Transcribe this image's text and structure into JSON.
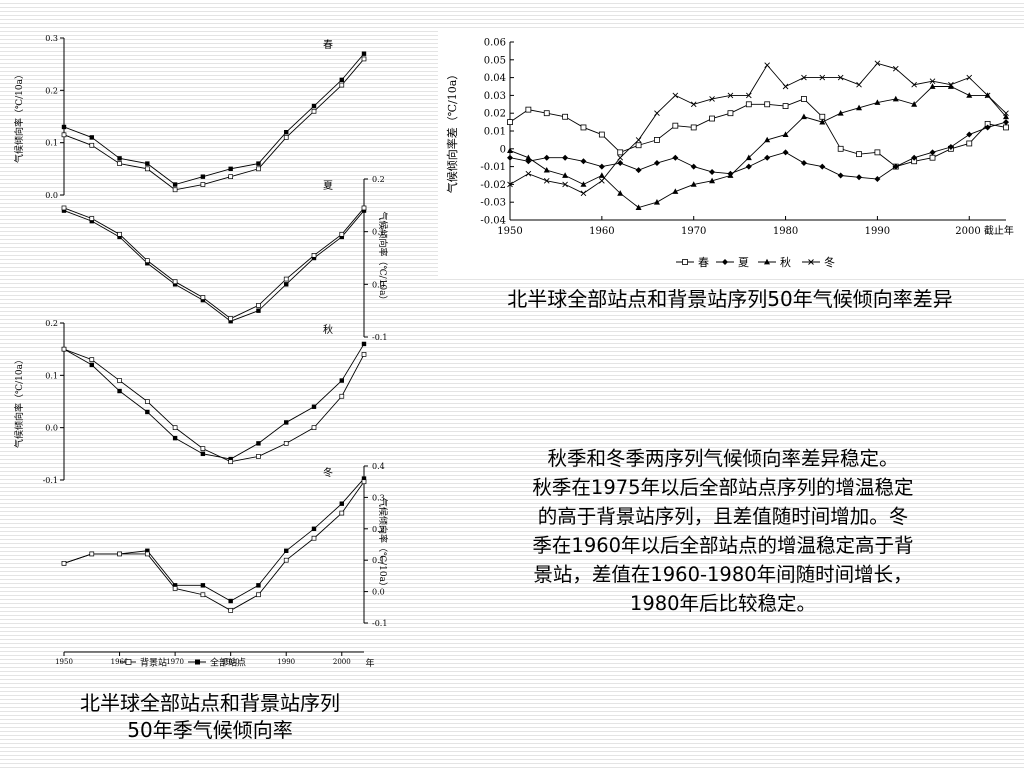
{
  "left_figure": {
    "caption_line1": "北半球全部站点和背景站序列",
    "caption_line2": "50年季气候倾向率",
    "legend": [
      "背景站",
      "全部站点"
    ]
  },
  "right_figure": {
    "caption": "北半球全部站点和背景站序列50年气候倾向率差异",
    "legend": [
      "春",
      "夏",
      "秋",
      "冬"
    ]
  },
  "description": [
    "秋季和冬季两序列气候倾向率差异稳定。",
    "秋季在1975年以后全部站点序列的增温稳定",
    "的高于背景站序列，且差值随时间增加。冬",
    "季在1960年以后全部站点的增温稳定高于背",
    "景站，差值在1960-1980年间随时间增长，",
    "1980年后比较稳定。"
  ],
  "chart_data": [
    {
      "type": "line",
      "name": "seasonal-panels",
      "x": [
        1950,
        1955,
        1960,
        1965,
        1970,
        1975,
        1980,
        1985,
        1990,
        1995,
        2000,
        2004
      ],
      "xticks": [
        "1950",
        "1960",
        "1970",
        "1980",
        "1990",
        "2000"
      ],
      "xunit": "年",
      "ylabel": "气候倾向率（℃/10a）",
      "panels": [
        {
          "season": "春",
          "ylim": [
            0.0,
            0.3
          ],
          "yticks": [
            "0.0",
            "0.1",
            "0.2",
            "0.3"
          ],
          "yaxis": "left",
          "series": [
            {
              "name": "全部站点",
              "values": [
                0.13,
                0.11,
                0.07,
                0.06,
                0.02,
                0.035,
                0.05,
                0.06,
                0.12,
                0.17,
                0.22,
                0.27
              ]
            },
            {
              "name": "背景站",
              "values": [
                0.115,
                0.095,
                0.06,
                0.05,
                0.01,
                0.02,
                0.035,
                0.05,
                0.11,
                0.16,
                0.21,
                0.26
              ]
            }
          ]
        },
        {
          "season": "夏",
          "ylim": [
            -0.1,
            0.2
          ],
          "yticks": [
            "0.2",
            "0.1",
            "0.0",
            "-0.1"
          ],
          "yaxis": "right",
          "series": [
            {
              "name": "全部站点",
              "values": [
                0.14,
                0.12,
                0.09,
                0.04,
                0.0,
                -0.03,
                -0.07,
                -0.05,
                0.0,
                0.05,
                0.09,
                0.14
              ]
            },
            {
              "name": "背景站",
              "values": [
                0.145,
                0.125,
                0.095,
                0.045,
                0.005,
                -0.025,
                -0.065,
                -0.04,
                0.01,
                0.055,
                0.095,
                0.145
              ]
            }
          ]
        },
        {
          "season": "秋",
          "ylim": [
            -0.1,
            0.2
          ],
          "yticks": [
            "0.2",
            "0.1",
            "0.0",
            "-0.1"
          ],
          "yaxis": "left",
          "series": [
            {
              "name": "全部站点",
              "values": [
                0.15,
                0.12,
                0.07,
                0.03,
                -0.02,
                -0.05,
                -0.06,
                -0.03,
                0.01,
                0.04,
                0.09,
                0.16
              ]
            },
            {
              "name": "背景站",
              "values": [
                0.15,
                0.13,
                0.09,
                0.05,
                0.0,
                -0.04,
                -0.065,
                -0.055,
                -0.03,
                0.0,
                0.06,
                0.14
              ]
            }
          ]
        },
        {
          "season": "冬",
          "ylim": [
            -0.1,
            0.4
          ],
          "yticks": [
            "0.4",
            "0.3",
            "0.2",
            "0.1",
            "0.0",
            "-0.1"
          ],
          "yaxis": "right",
          "series": [
            {
              "name": "全部站点",
              "values": [
                0.09,
                0.12,
                0.12,
                0.13,
                0.02,
                0.02,
                -0.03,
                0.02,
                0.13,
                0.2,
                0.28,
                0.36
              ]
            },
            {
              "name": "背景站",
              "values": [
                0.09,
                0.12,
                0.12,
                0.12,
                0.01,
                -0.01,
                -0.06,
                -0.01,
                0.1,
                0.17,
                0.25,
                0.35
              ]
            }
          ]
        }
      ]
    },
    {
      "type": "line",
      "name": "difference",
      "x": [
        1950,
        1952,
        1954,
        1956,
        1958,
        1960,
        1962,
        1964,
        1966,
        1968,
        1970,
        1972,
        1974,
        1976,
        1978,
        1980,
        1982,
        1984,
        1986,
        1988,
        1990,
        1992,
        1994,
        1996,
        1998,
        2000,
        2002,
        2004
      ],
      "ylim": [
        -0.04,
        0.06
      ],
      "yticks": [
        "0.06",
        "0.05",
        "0.04",
        "0.03",
        "0.02",
        "0.01",
        "0",
        "-0.01",
        "-0.02",
        "-0.03",
        "-0.04"
      ],
      "xlim": [
        1950,
        2004
      ],
      "xticks": [
        "1950",
        "1960",
        "1970",
        "1980",
        "1990",
        "2000 截止年"
      ],
      "ylabel": "气候倾向率差（℃/10a）",
      "series": [
        {
          "name": "春",
          "values": [
            0.015,
            0.022,
            0.02,
            0.018,
            0.012,
            0.008,
            -0.002,
            0.002,
            0.005,
            0.013,
            0.012,
            0.017,
            0.02,
            0.025,
            0.025,
            0.024,
            0.028,
            0.018,
            0.0,
            -0.003,
            -0.002,
            -0.01,
            -0.007,
            -0.005,
            0.0,
            0.003,
            0.014,
            0.012
          ]
        },
        {
          "name": "夏",
          "values": [
            -0.005,
            -0.007,
            -0.005,
            -0.005,
            -0.007,
            -0.01,
            -0.008,
            -0.012,
            -0.008,
            -0.005,
            -0.01,
            -0.013,
            -0.014,
            -0.01,
            -0.005,
            -0.002,
            -0.008,
            -0.01,
            -0.015,
            -0.016,
            -0.017,
            -0.01,
            -0.005,
            -0.002,
            0.001,
            0.008,
            0.012,
            0.015
          ]
        },
        {
          "name": "秋",
          "values": [
            -0.001,
            -0.005,
            -0.012,
            -0.015,
            -0.02,
            -0.015,
            -0.025,
            -0.033,
            -0.03,
            -0.024,
            -0.02,
            -0.018,
            -0.015,
            -0.005,
            0.005,
            0.008,
            0.018,
            0.015,
            0.02,
            0.023,
            0.026,
            0.028,
            0.025,
            0.035,
            0.035,
            0.03,
            0.03,
            0.018
          ]
        },
        {
          "name": "冬",
          "values": [
            -0.02,
            -0.014,
            -0.018,
            -0.02,
            -0.025,
            -0.018,
            -0.005,
            0.005,
            0.02,
            0.03,
            0.025,
            0.028,
            0.03,
            0.03,
            0.047,
            0.035,
            0.04,
            0.04,
            0.04,
            0.036,
            0.048,
            0.045,
            0.036,
            0.038,
            0.036,
            0.04,
            0.03,
            0.02
          ]
        }
      ]
    }
  ]
}
